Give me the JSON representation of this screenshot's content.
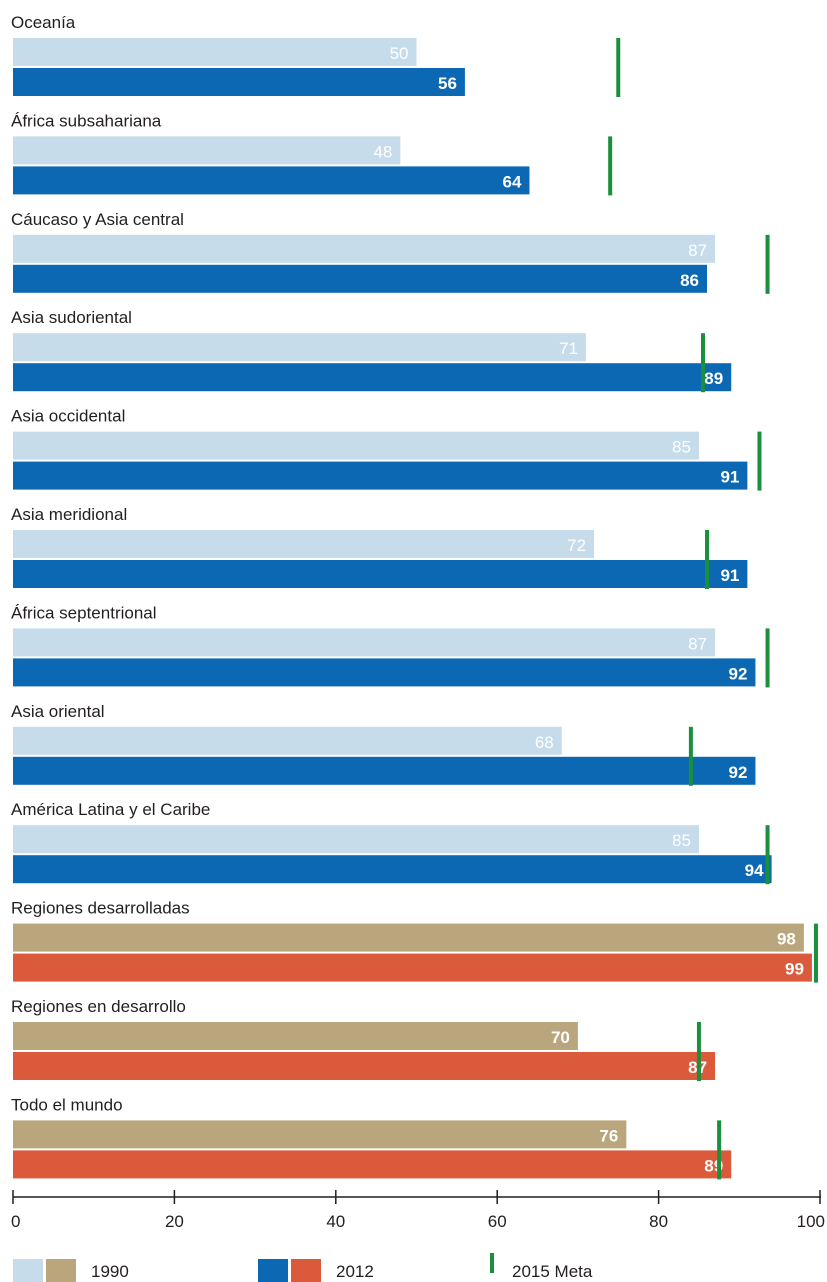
{
  "chart_data": {
    "type": "bar",
    "orientation": "horizontal",
    "categories": [
      "Oceanía",
      "África subsahariana",
      "Cáucaso y Asia central",
      "Asia sudoriental",
      "Asia occidental",
      "Asia meridional",
      "África septentrional",
      "Asia oriental",
      "América Latina y el Caribe",
      "Regiones desarrolladas",
      "Regiones en desarrollo",
      "Todo el mundo"
    ],
    "series": [
      {
        "name": "1990",
        "values": [
          50,
          48,
          87,
          71,
          85,
          72,
          87,
          68,
          85,
          98,
          70,
          76
        ]
      },
      {
        "name": "2012",
        "values": [
          56,
          64,
          86,
          89,
          91,
          91,
          92,
          92,
          94,
          99,
          87,
          89
        ]
      }
    ],
    "target": {
      "name": "2015 Meta",
      "values": [
        75,
        74,
        93.5,
        85.5,
        92.5,
        86,
        93.5,
        84,
        93.5,
        99.5,
        85,
        87.5
      ]
    },
    "group_kind": [
      "region",
      "region",
      "region",
      "region",
      "region",
      "region",
      "region",
      "region",
      "region",
      "aggregate",
      "aggregate",
      "aggregate"
    ],
    "colors": {
      "region_1990": "#c6dcea",
      "region_2012": "#0d68b3",
      "aggregate_1990": "#b9a67c",
      "aggregate_2012": "#dc5a3c",
      "target": "#1a8f3c",
      "label_light": "#ffffff",
      "axis": "#231f20"
    },
    "xlim": [
      0,
      100
    ],
    "xticks": [
      0,
      20,
      40,
      60,
      80,
      100
    ],
    "tick_labels": [
      "0",
      "20",
      "40",
      "60",
      "80",
      "100"
    ],
    "grid": false,
    "legend": {
      "position": "bottom",
      "items": [
        {
          "label": "1990",
          "swatches": [
            "region_1990",
            "aggregate_1990"
          ]
        },
        {
          "label": "2012",
          "swatches": [
            "region_2012",
            "aggregate_2012"
          ]
        },
        {
          "label": "2015 Meta",
          "swatches": [
            "target"
          ]
        }
      ]
    }
  }
}
